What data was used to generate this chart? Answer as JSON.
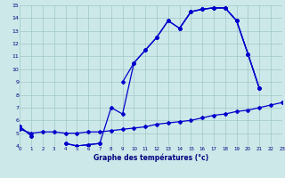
{
  "xlabel": "Graphe des températures (°c)",
  "background_color": "#cce8e8",
  "line_color": "#0000cc",
  "hours": [
    0,
    1,
    2,
    3,
    4,
    5,
    6,
    7,
    8,
    9,
    10,
    11,
    12,
    13,
    14,
    15,
    16,
    17,
    18,
    19,
    20,
    21,
    22,
    23
  ],
  "line_a": [
    5.5,
    4.8,
    null,
    null,
    4.2,
    4.0,
    4.1,
    4.2,
    7.0,
    6.5,
    10.5,
    11.5,
    12.5,
    13.8,
    13.2,
    14.5,
    14.7,
    14.8,
    14.8,
    13.8,
    11.2,
    8.5,
    null,
    null
  ],
  "line_b": [
    5.5,
    4.8,
    null,
    null,
    4.2,
    4.0,
    4.1,
    4.2,
    null,
    null,
    10.5,
    null,
    12.5,
    null,
    13.2,
    14.5,
    14.7,
    14.8,
    14.8,
    13.8,
    11.2,
    8.5,
    null,
    null
  ],
  "line_c": [
    5.5,
    null,
    null,
    null,
    null,
    null,
    null,
    null,
    null,
    9.0,
    10.5,
    11.5,
    12.5,
    13.8,
    13.2,
    14.5,
    14.7,
    14.8,
    14.8,
    13.8,
    11.2,
    8.5,
    null,
    null
  ],
  "line_flat": [
    5.3,
    5.0,
    5.1,
    5.1,
    5.0,
    5.0,
    5.1,
    5.1,
    5.2,
    5.3,
    5.4,
    5.5,
    5.7,
    5.8,
    5.9,
    6.0,
    6.2,
    6.4,
    6.5,
    6.7,
    6.8,
    7.0,
    7.2,
    7.4
  ],
  "ylim": [
    4,
    15
  ],
  "xlim": [
    0,
    23
  ],
  "yticks": [
    4,
    5,
    6,
    7,
    8,
    9,
    10,
    11,
    12,
    13,
    14,
    15
  ],
  "xticks": [
    0,
    1,
    2,
    3,
    4,
    5,
    6,
    7,
    8,
    9,
    10,
    11,
    12,
    13,
    14,
    15,
    16,
    17,
    18,
    19,
    20,
    21,
    22,
    23
  ]
}
